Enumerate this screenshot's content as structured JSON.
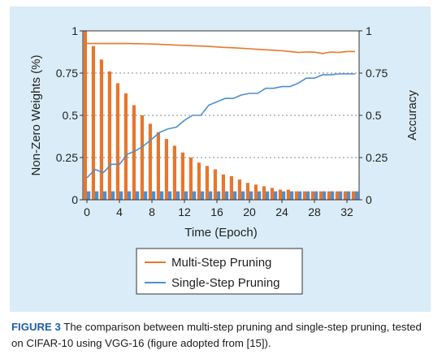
{
  "chart_data": {
    "type": "bar+line",
    "xlabel": "Time (Epoch)",
    "ylabel_left": "Non-Zero Weights (%)",
    "ylabel_right": "Accuracy",
    "xlim": [
      -0.5,
      33.5
    ],
    "ylim_left": [
      0,
      1
    ],
    "ylim_right": [
      0,
      1
    ],
    "x_ticks": [
      0,
      4,
      8,
      12,
      16,
      20,
      24,
      28,
      32
    ],
    "y_ticks_left": [
      "0",
      "0.25",
      "0.5",
      "0.75",
      "1"
    ],
    "y_ticks_right": [
      "0",
      "0.25",
      "0.5",
      "0.75",
      "1"
    ],
    "y_tick_values": [
      0,
      0.25,
      0.5,
      0.75,
      1
    ],
    "grid": "horizontal dashed",
    "legend_position": "bottom-center below plot",
    "bars_multi_step_nonzero_weights": {
      "color": "#e8762c",
      "epochs": [
        0,
        1,
        2,
        3,
        4,
        5,
        6,
        7,
        8,
        9,
        10,
        11,
        12,
        13,
        14,
        15,
        16,
        17,
        18,
        19,
        20,
        21,
        22,
        23,
        24,
        25,
        26,
        27,
        28,
        29,
        30,
        31,
        32,
        33
      ],
      "values": [
        1.0,
        0.91,
        0.83,
        0.76,
        0.69,
        0.63,
        0.56,
        0.5,
        0.45,
        0.4,
        0.36,
        0.32,
        0.28,
        0.25,
        0.22,
        0.2,
        0.18,
        0.15,
        0.14,
        0.12,
        0.1,
        0.09,
        0.08,
        0.07,
        0.06,
        0.06,
        0.05,
        0.05,
        0.05,
        0.05,
        0.05,
        0.05,
        0.05,
        0.05
      ]
    },
    "bars_single_step_nonzero_weights": {
      "color": "#4d8fcf",
      "values": [
        0.05,
        0.05,
        0.05,
        0.05,
        0.05,
        0.05,
        0.05,
        0.05,
        0.05,
        0.05,
        0.05,
        0.05,
        0.05,
        0.05,
        0.05,
        0.05,
        0.05,
        0.05,
        0.05,
        0.05,
        0.05,
        0.05,
        0.05,
        0.05,
        0.05,
        0.05,
        0.05,
        0.05,
        0.05,
        0.05,
        0.05,
        0.05,
        0.05,
        0.05
      ]
    },
    "series": [
      {
        "name": "Multi-Step Pruning",
        "color": "#e8762c",
        "axis": "right",
        "x": [
          0,
          1,
          2,
          3,
          4,
          5,
          6,
          7,
          8,
          9,
          10,
          11,
          12,
          13,
          14,
          15,
          16,
          17,
          18,
          19,
          20,
          21,
          22,
          23,
          24,
          25,
          26,
          27,
          28,
          29,
          30,
          31,
          32,
          33
        ],
        "values": [
          0.925,
          0.925,
          0.925,
          0.925,
          0.925,
          0.925,
          0.924,
          0.923,
          0.922,
          0.92,
          0.918,
          0.916,
          0.914,
          0.912,
          0.91,
          0.908,
          0.905,
          0.902,
          0.9,
          0.897,
          0.894,
          0.891,
          0.888,
          0.885,
          0.882,
          0.878,
          0.872,
          0.875,
          0.874,
          0.866,
          0.875,
          0.872,
          0.878,
          0.878
        ]
      },
      {
        "name": "Single-Step Pruning",
        "color": "#4d8fcf",
        "axis": "right",
        "x": [
          0,
          1,
          2,
          3,
          4,
          5,
          6,
          7,
          8,
          9,
          10,
          11,
          12,
          13,
          14,
          15,
          16,
          17,
          18,
          19,
          20,
          21,
          22,
          23,
          24,
          25,
          26,
          27,
          28,
          29,
          30,
          31,
          32,
          33
        ],
        "values": [
          0.13,
          0.18,
          0.16,
          0.21,
          0.21,
          0.27,
          0.29,
          0.32,
          0.36,
          0.4,
          0.42,
          0.43,
          0.47,
          0.5,
          0.5,
          0.56,
          0.58,
          0.6,
          0.6,
          0.62,
          0.63,
          0.63,
          0.66,
          0.66,
          0.67,
          0.67,
          0.69,
          0.72,
          0.72,
          0.74,
          0.74,
          0.745,
          0.745,
          0.745
        ]
      }
    ]
  },
  "caption": {
    "label": "FIGURE 3",
    "text": "The comparison between multi-step pruning and single-step pruning, tested on CIFAR-10 using VGG-16 (figure adopted from [15])."
  }
}
